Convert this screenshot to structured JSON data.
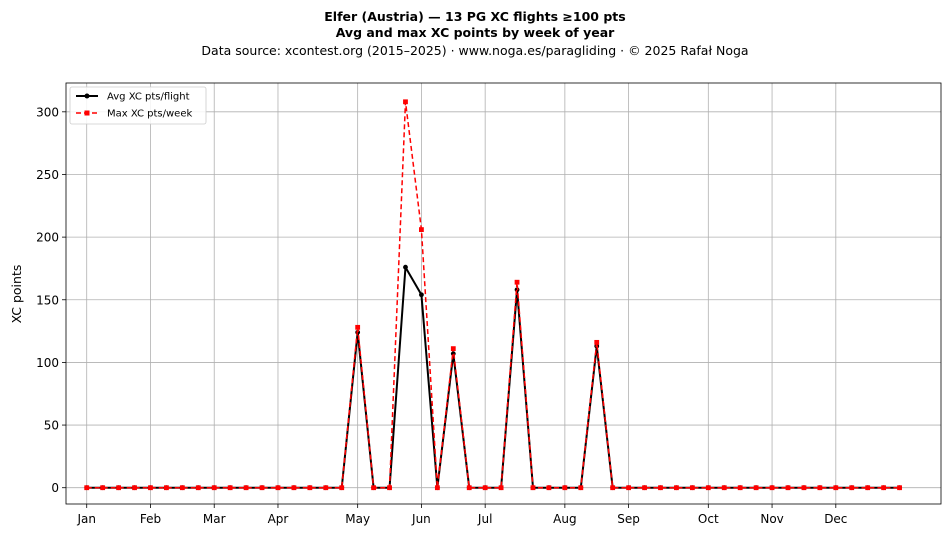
{
  "chart_data": {
    "type": "line",
    "title_line1": "Elfer (Austria)  —  13 PG XC flights ≥100 pts",
    "title_line2": "Avg and max XC points by week of year",
    "subtitle": "Data source: xcontest.org (2015–2025)  ·  www.noga.es/paragliding  ·  © 2025 Rafał Noga",
    "xlabel": "",
    "ylabel": "XC points",
    "ylim": [
      -13,
      323
    ],
    "xlim": [
      -1.3,
      53.6
    ],
    "yticks": [
      0,
      50,
      100,
      150,
      200,
      250,
      300
    ],
    "xticks": [
      {
        "week": 0,
        "label": "Jan"
      },
      {
        "week": 4,
        "label": "Feb"
      },
      {
        "week": 8,
        "label": "Mar"
      },
      {
        "week": 12,
        "label": "Apr"
      },
      {
        "week": 17,
        "label": "May"
      },
      {
        "week": 21,
        "label": "Jun"
      },
      {
        "week": 25,
        "label": "Jul"
      },
      {
        "week": 30,
        "label": "Aug"
      },
      {
        "week": 34,
        "label": "Sep"
      },
      {
        "week": 39,
        "label": "Oct"
      },
      {
        "week": 43,
        "label": "Nov"
      },
      {
        "week": 47,
        "label": "Dec"
      }
    ],
    "grid": true,
    "legend_position": "top-left",
    "x": [
      0,
      1,
      2,
      3,
      4,
      5,
      6,
      7,
      8,
      9,
      10,
      11,
      12,
      13,
      14,
      15,
      16,
      17,
      18,
      19,
      20,
      21,
      22,
      23,
      24,
      25,
      26,
      27,
      28,
      29,
      30,
      31,
      32,
      33,
      34,
      35,
      36,
      37,
      38,
      39,
      40,
      41,
      42,
      43,
      44,
      45,
      46,
      47,
      48,
      49,
      50,
      51
    ],
    "series": [
      {
        "name": "Avg XC pts/flight",
        "color": "#000000",
        "style": "solid",
        "marker": "circle",
        "values": [
          0,
          0,
          0,
          0,
          0,
          0,
          0,
          0,
          0,
          0,
          0,
          0,
          0,
          0,
          0,
          0,
          0,
          124,
          0,
          0,
          176,
          154,
          0,
          107,
          0,
          0,
          0,
          158,
          0,
          0,
          0,
          0,
          113,
          0,
          0,
          0,
          0,
          0,
          0,
          0,
          0,
          0,
          0,
          0,
          0,
          0,
          0,
          0,
          0,
          0,
          0,
          0
        ]
      },
      {
        "name": "Max XC pts/week",
        "color": "#ff0000",
        "style": "dashed",
        "marker": "square",
        "values": [
          0,
          0,
          0,
          0,
          0,
          0,
          0,
          0,
          0,
          0,
          0,
          0,
          0,
          0,
          0,
          0,
          0,
          128,
          0,
          0,
          308,
          206,
          0,
          111,
          0,
          0,
          0,
          164,
          0,
          0,
          0,
          0,
          116,
          0,
          0,
          0,
          0,
          0,
          0,
          0,
          0,
          0,
          0,
          0,
          0,
          0,
          0,
          0,
          0,
          0,
          0,
          0
        ]
      }
    ]
  }
}
